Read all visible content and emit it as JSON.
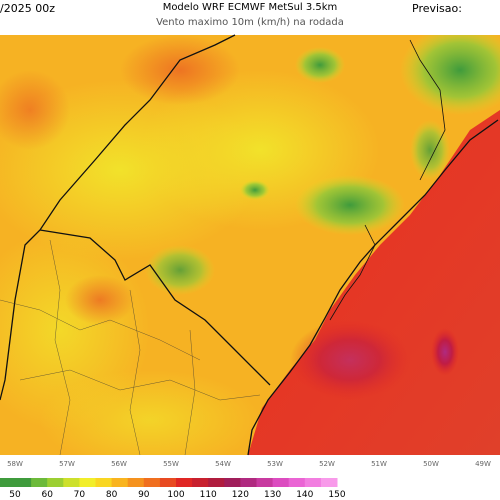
{
  "header": {
    "run": "/2025 00z",
    "model": "Modelo WRF ECMWF MetSul 3.5km",
    "variable": "Vento maximo 10m (km/h) na rodada",
    "forecast": "Previsao:"
  },
  "longitudes": [
    "58W",
    "57W",
    "56W",
    "55W",
    "54W",
    "53W",
    "52W",
    "51W",
    "50W",
    "49W"
  ],
  "colorbar": {
    "ticks": [
      50,
      60,
      70,
      80,
      90,
      100,
      110,
      120,
      130,
      140,
      150
    ],
    "colors": [
      "#3f9b3c",
      "#6cba3a",
      "#9ccf32",
      "#cde02c",
      "#f2ee2a",
      "#f9d622",
      "#f9b41f",
      "#f5921e",
      "#f06f1f",
      "#e84a21",
      "#e02624",
      "#c8202e",
      "#b01c3e",
      "#a01e5a",
      "#b02a80",
      "#c83aa0",
      "#dc4cc0",
      "#ea64d4",
      "#f27ee0",
      "#f89aea"
    ]
  }
}
